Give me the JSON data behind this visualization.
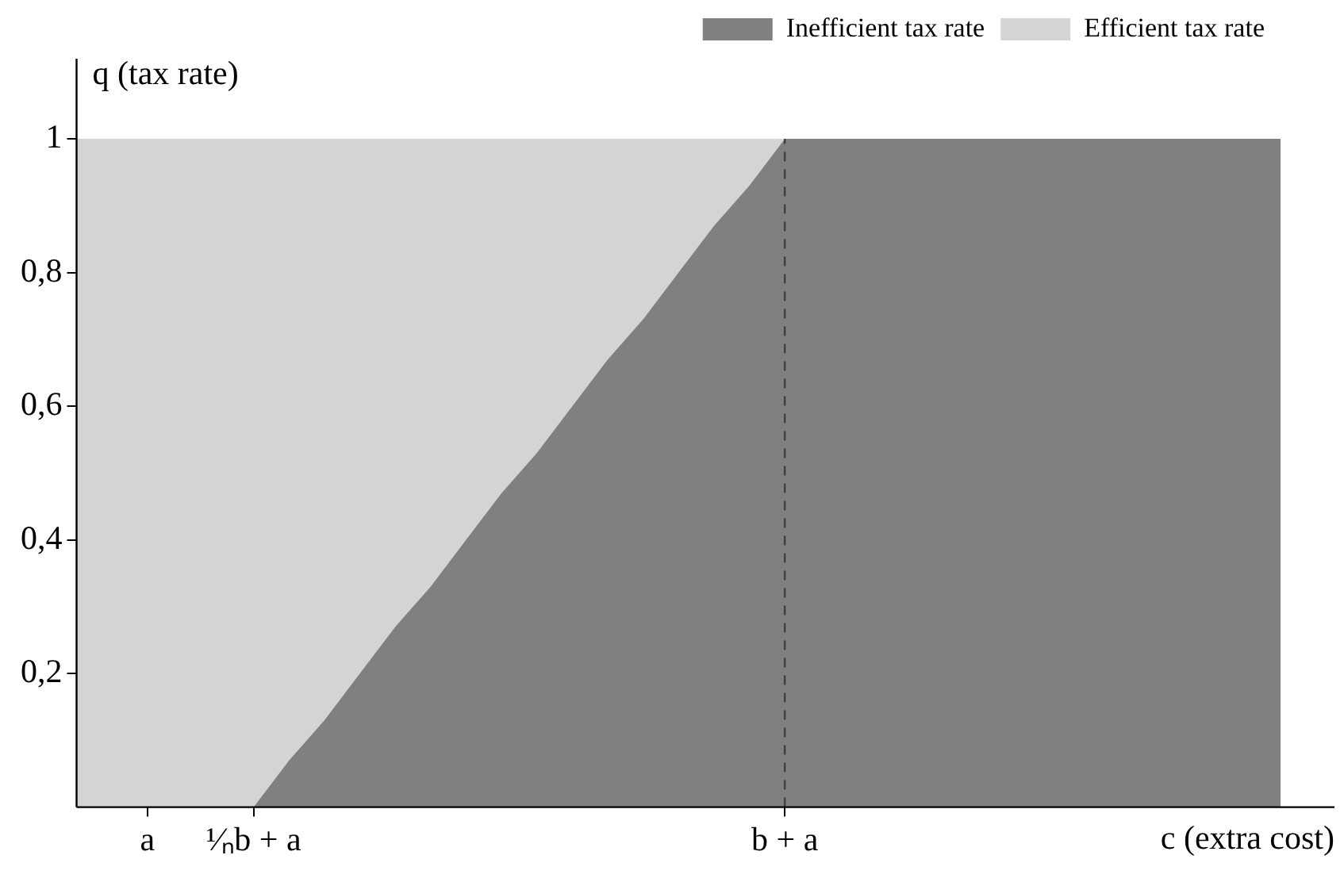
{
  "chart_data": {
    "type": "area",
    "stacked": true,
    "xlabel": "c (extra cost)",
    "ylabel": "q (tax rate)",
    "categories": [
      null,
      null,
      "a",
      null,
      null,
      "¹⁄ₙb + a",
      null,
      null,
      null,
      null,
      null,
      null,
      null,
      null,
      null,
      null,
      null,
      null,
      null,
      null,
      "b + a",
      null,
      null,
      null,
      null,
      null,
      null,
      null,
      null,
      null,
      null,
      null,
      null,
      null,
      null
    ],
    "series": [
      {
        "name": "Inefficient tax rate",
        "color": "#808080",
        "values": [
          0,
          0,
          0,
          0,
          0,
          0,
          0.07,
          0.13,
          0.2,
          0.27,
          0.33,
          0.4,
          0.47,
          0.53,
          0.6,
          0.67,
          0.73,
          0.8,
          0.87,
          0.93,
          1,
          1,
          1,
          1,
          1,
          1,
          1,
          1,
          1,
          1,
          1,
          1,
          1,
          1,
          1
        ]
      },
      {
        "name": "Efficient tax rate",
        "color": "#d4d4d4",
        "values": [
          1,
          1,
          1,
          1,
          1,
          1,
          0.93,
          0.87,
          0.8,
          0.73,
          0.67,
          0.6,
          0.53,
          0.47,
          0.4,
          0.33,
          0.27,
          0.2,
          0.13,
          0.07,
          0,
          null,
          null,
          null,
          null,
          null,
          null,
          null,
          null,
          null,
          null,
          null,
          null,
          null,
          null
        ]
      }
    ],
    "ylim": [
      0,
      1.12
    ],
    "yticks": [
      {
        "value": 0.2,
        "label": "0,2"
      },
      {
        "value": 0.4,
        "label": "0,4"
      },
      {
        "value": 0.6,
        "label": "0,6"
      },
      {
        "value": 0.8,
        "label": "0,8"
      },
      {
        "value": 1,
        "label": "1"
      }
    ],
    "ref_lines": [
      {
        "axis": "x",
        "value": "b + a",
        "line_style": "dashed",
        "color": "#404040"
      }
    ],
    "grid": false,
    "legend": "top right"
  }
}
